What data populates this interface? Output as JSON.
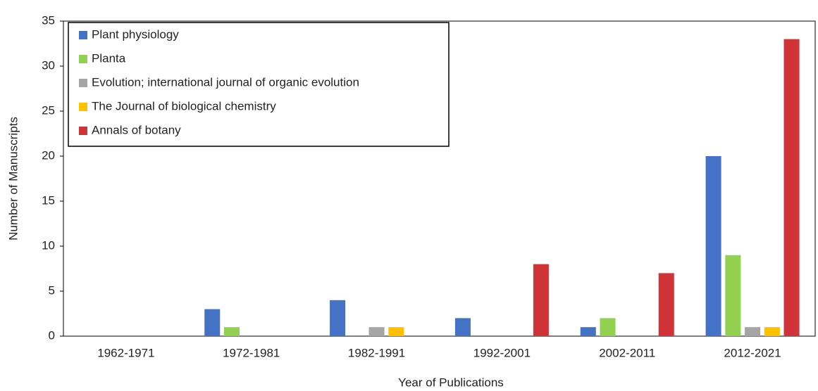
{
  "chart_data": {
    "type": "bar",
    "x_label": "Year of Publications",
    "y_label": "Number of Manuscripts",
    "categories": [
      "1962-1971",
      "1972-1981",
      "1982-1991",
      "1992-2001",
      "2002-2011",
      "2012-2021"
    ],
    "series": [
      {
        "name": "Plant physiology",
        "color": "#4472c4",
        "values": [
          0,
          3,
          4,
          2,
          1,
          20
        ]
      },
      {
        "name": "Planta",
        "color": "#92d050",
        "values": [
          0,
          1,
          0,
          0,
          2,
          9
        ]
      },
      {
        "name": "Evolution; international journal of organic evolution",
        "color": "#a5a5a5",
        "values": [
          0,
          0,
          1,
          0,
          0,
          1
        ]
      },
      {
        "name": "The Journal of biological chemistry",
        "color": "#ffc000",
        "values": [
          0,
          0,
          1,
          0,
          0,
          1
        ]
      },
      {
        "name": "Annals of botany",
        "color": "#d13438",
        "values": [
          0,
          0,
          0,
          8,
          7,
          33
        ]
      }
    ],
    "ylim": [
      0,
      35
    ],
    "yticks": [
      0,
      5,
      10,
      15,
      20,
      25,
      30,
      35
    ],
    "grid": false,
    "legend": "top-left"
  }
}
